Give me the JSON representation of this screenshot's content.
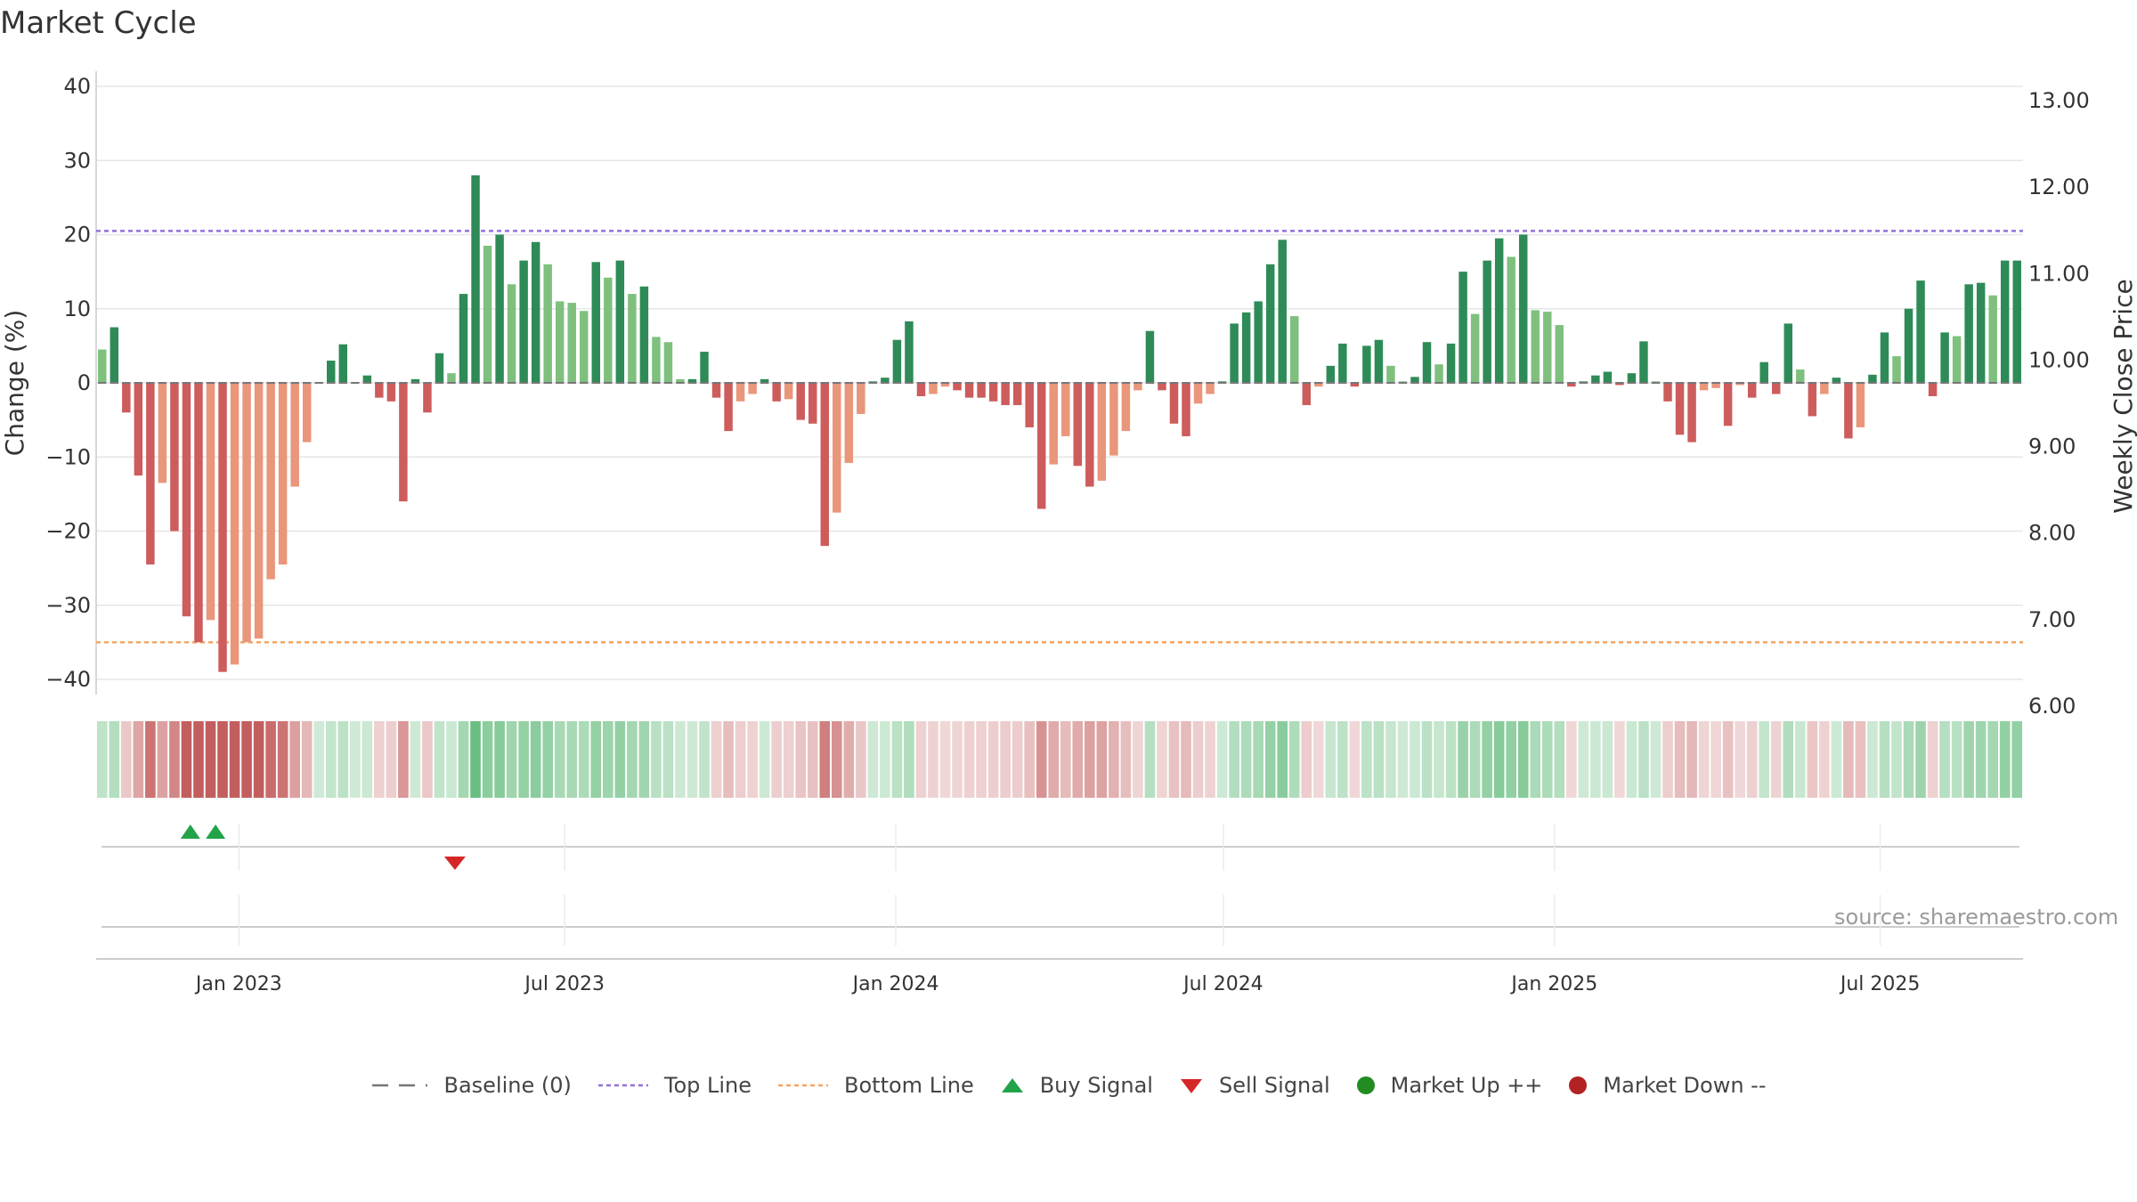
{
  "chart_data": {
    "type": "bar",
    "title": "Market Cycle",
    "ylabel": "Change (%)",
    "y2label": "Weekly Close Price",
    "ylim": [
      -42,
      42
    ],
    "y2lim": [
      5.9,
      13.2
    ],
    "yticks": [
      "40",
      "30",
      "20",
      "10",
      "0",
      "−10",
      "−20",
      "−30",
      "−40"
    ],
    "y2ticks": [
      "13.00",
      "12.00",
      "11.00",
      "10.00",
      "9.00",
      "8.00",
      "7.00",
      "6.00"
    ],
    "xticks": [
      "Jan 2023",
      "Jul 2023",
      "Jan 2024",
      "Jul 2024",
      "Jan 2025",
      "Jul 2025"
    ],
    "top_line": 20.5,
    "bottom_line": -35,
    "series_name": "Change (%)",
    "values": [
      4.5,
      7.5,
      -4,
      -12.5,
      -24.5,
      -13.5,
      -20,
      -31.5,
      -35,
      -32,
      -39,
      -38,
      -35,
      -34.5,
      -26.5,
      -24.5,
      -14,
      -8,
      0,
      3,
      5.2,
      0,
      1,
      -2,
      -2.5,
      -16,
      0.5,
      -4,
      4,
      1.3,
      12,
      28,
      18.5,
      20,
      13.3,
      16.5,
      19,
      16,
      11,
      10.8,
      9.7,
      16.3,
      14.2,
      16.5,
      12,
      13,
      6.2,
      5.5,
      0.5,
      0.5,
      4.2,
      -2,
      -6.5,
      -2.5,
      -1.5,
      0.5,
      -2.5,
      -2.2,
      -5,
      -5.5,
      -22,
      -17.5,
      -10.8,
      -4.2,
      0.2,
      0.7,
      5.8,
      8.3,
      -1.8,
      -1.5,
      -0.5,
      -1,
      -2,
      -2,
      -2.5,
      -3,
      -3,
      -6,
      -17,
      -11,
      -7.2,
      -11.2,
      -14,
      -13.2,
      -9.8,
      -6.5,
      -1,
      7,
      -1,
      -5.5,
      -7.2,
      -2.8,
      -1.5,
      0.2,
      8,
      9.5,
      11,
      16,
      19.3,
      9,
      -3,
      -0.5,
      2.3,
      5.3,
      -0.5,
      5,
      5.8,
      2.3,
      0.2,
      0.8,
      5.5,
      2.5,
      5.3,
      15,
      9.3,
      16.5,
      19.5,
      17,
      20,
      9.8,
      9.6,
      7.8,
      -0.5,
      0.2,
      1,
      1.5,
      -0.3,
      1.3,
      5.6,
      0.2,
      -2.5,
      -7,
      -8,
      -1,
      -0.7,
      -5.8,
      -0.3,
      -2,
      2.8,
      -1.5,
      8,
      1.8,
      -4.5,
      -1.5,
      0.7,
      -7.5,
      -6,
      1.1,
      6.8,
      3.6,
      10,
      13.8,
      -1.8,
      6.8,
      6.3,
      13.3,
      13.5,
      11.8,
      16.5,
      16.5
    ],
    "x_start": "2022-10-17",
    "x_end": "2025-09-15",
    "x_tick_dates": [
      "2023-01-01",
      "2023-07-01",
      "2024-01-01",
      "2024-07-01",
      "2025-01-01",
      "2025-07-01"
    ],
    "buy_signals": [
      "2022-12-05",
      "2022-12-19"
    ],
    "sell_signals": [
      "2023-05-01"
    ],
    "legend": [
      "Baseline (0)",
      "Top Line",
      "Bottom Line",
      "Buy Signal",
      "Sell Signal",
      "Market Up ++",
      "Market Down --"
    ],
    "colors": {
      "strong_up": "#2e8b57",
      "weak_up": "#7fc07f",
      "strong_down": "#cd5c5c",
      "weak_down": "#e9967a",
      "top_line": "#9370db",
      "bottom_line": "#f4a460",
      "buy": "#22a34a",
      "sell": "#d62728",
      "market_up": "#228b22",
      "market_down": "#b22222",
      "baseline": "#777777"
    },
    "grid": true
  },
  "source": "source: sharemaestro.com"
}
